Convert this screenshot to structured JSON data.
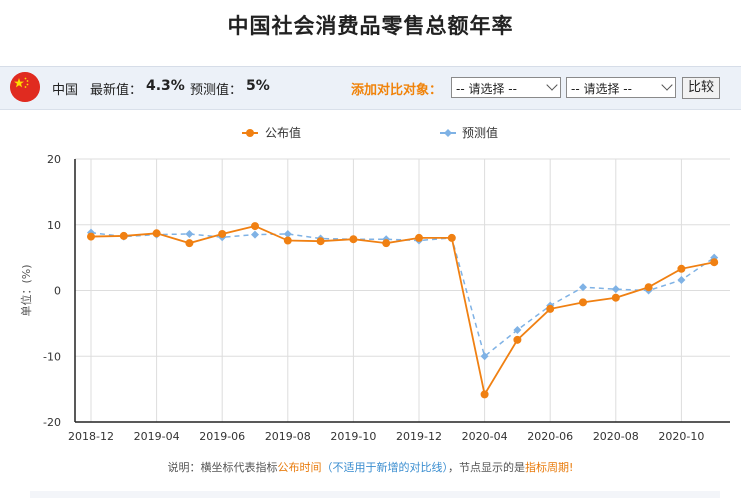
{
  "page": {
    "title": "中国社会消费品零售总额年率"
  },
  "toolbar": {
    "country": "中国",
    "latest_label": "最新值：",
    "latest_value": "4.3%",
    "forecast_label": "预测值：",
    "forecast_value": "5%",
    "compare_label": "添加对比对象：",
    "select1": "-- 请选择 --",
    "select2": "-- 请选择 --",
    "compare_button": "比较"
  },
  "note": {
    "prefix": "说明：横坐标代表指标",
    "hl1": "公布时间",
    "paren_open": "（",
    "bl": "不适用于新增的对比线",
    "paren_close": "）",
    "mid": "，节点显示的是",
    "hl2": "指标周期",
    "end": "!"
  },
  "colors": {
    "actual": "#f08012",
    "forecast": "#7fb2e5",
    "grid": "#dddddd"
  },
  "chart_data": {
    "type": "line",
    "ylabel": "单位：(%)",
    "ylim": [
      -20,
      20
    ],
    "yticks": [
      20,
      10,
      0,
      -10,
      -20
    ],
    "x": [
      "2018-12",
      "2019-03",
      "2019-04",
      "2019-05",
      "2019-06",
      "2019-07",
      "2019-08",
      "2019-09",
      "2019-10",
      "2019-11",
      "2019-12",
      "2020-01",
      "2020-04",
      "2020-05",
      "2020-06",
      "2020-07",
      "2020-08",
      "2020-09",
      "2020-10",
      "2020-11"
    ],
    "xtick_labels": [
      "2018-12",
      "2019-04",
      "2019-06",
      "2019-08",
      "2019-10",
      "2019-12",
      "2020-04",
      "2020-06",
      "2020-08",
      "2020-10"
    ],
    "xtick_positions": [
      0,
      2,
      4,
      6,
      8,
      10,
      12,
      14,
      16,
      18
    ],
    "series": [
      {
        "name": "公布值",
        "values": [
          8.2,
          8.3,
          8.7,
          7.2,
          8.6,
          9.8,
          7.6,
          7.5,
          7.8,
          7.2,
          8.0,
          8.0,
          -15.8,
          -7.5,
          -2.8,
          -1.8,
          -1.1,
          0.5,
          3.3,
          4.3
        ]
      },
      {
        "name": "预测值",
        "values": [
          8.8,
          8.2,
          8.5,
          8.6,
          8.1,
          8.5,
          8.6,
          7.9,
          7.8,
          7.8,
          7.6,
          8.0,
          -10.0,
          -6.0,
          -2.3,
          0.5,
          0.2,
          0.0,
          1.6,
          5.0
        ]
      }
    ],
    "legend": "top",
    "grid": true
  }
}
